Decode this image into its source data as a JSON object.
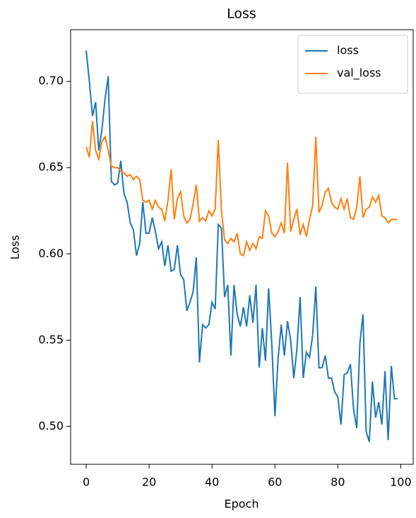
{
  "chart_data": {
    "type": "line",
    "title": "Loss",
    "xlabel": "Epoch",
    "ylabel": "Loss",
    "x": [
      0,
      1,
      2,
      3,
      4,
      5,
      6,
      7,
      8,
      9,
      10,
      11,
      12,
      13,
      14,
      15,
      16,
      17,
      18,
      19,
      20,
      21,
      22,
      23,
      24,
      25,
      26,
      27,
      28,
      29,
      30,
      31,
      32,
      33,
      34,
      35,
      36,
      37,
      38,
      39,
      40,
      41,
      42,
      43,
      44,
      45,
      46,
      47,
      48,
      49,
      50,
      51,
      52,
      53,
      54,
      55,
      56,
      57,
      58,
      59,
      60,
      61,
      62,
      63,
      64,
      65,
      66,
      67,
      68,
      69,
      70,
      71,
      72,
      73,
      74,
      75,
      76,
      77,
      78,
      79,
      80,
      81,
      82,
      83,
      84,
      85,
      86,
      87,
      88,
      89,
      90,
      91,
      92,
      93,
      94,
      95,
      96,
      97,
      98,
      99
    ],
    "series": [
      {
        "name": "loss",
        "color": "#1f77b4",
        "values": [
          0.718,
          0.7,
          0.68,
          0.688,
          0.66,
          0.672,
          0.69,
          0.703,
          0.642,
          0.64,
          0.641,
          0.654,
          0.635,
          0.63,
          0.618,
          0.614,
          0.599,
          0.606,
          0.63,
          0.612,
          0.612,
          0.621,
          0.613,
          0.603,
          0.607,
          0.593,
          0.605,
          0.59,
          0.591,
          0.605,
          0.588,
          0.585,
          0.567,
          0.572,
          0.578,
          0.598,
          0.537,
          0.559,
          0.557,
          0.559,
          0.572,
          0.568,
          0.617,
          0.615,
          0.575,
          0.582,
          0.541,
          0.582,
          0.565,
          0.558,
          0.569,
          0.558,
          0.576,
          0.56,
          0.582,
          0.534,
          0.557,
          0.538,
          0.58,
          0.548,
          0.506,
          0.539,
          0.559,
          0.541,
          0.561,
          0.55,
          0.528,
          0.545,
          0.575,
          0.528,
          0.543,
          0.54,
          0.553,
          0.581,
          0.534,
          0.534,
          0.541,
          0.528,
          0.528,
          0.52,
          0.517,
          0.501,
          0.53,
          0.531,
          0.536,
          0.51,
          0.499,
          0.548,
          0.565,
          0.497,
          0.491,
          0.526,
          0.505,
          0.514,
          0.501,
          0.532,
          0.492,
          0.535,
          0.516,
          0.516
        ]
      },
      {
        "name": "val_loss",
        "color": "#ff7f0e",
        "values": [
          0.662,
          0.656,
          0.677,
          0.66,
          0.655,
          0.665,
          0.668,
          0.66,
          0.651,
          0.65,
          0.65,
          0.648,
          0.647,
          0.645,
          0.646,
          0.643,
          0.645,
          0.643,
          0.631,
          0.63,
          0.631,
          0.626,
          0.631,
          0.627,
          0.626,
          0.619,
          0.631,
          0.649,
          0.62,
          0.632,
          0.636,
          0.622,
          0.618,
          0.62,
          0.629,
          0.64,
          0.619,
          0.621,
          0.619,
          0.625,
          0.622,
          0.626,
          0.666,
          0.625,
          0.608,
          0.606,
          0.609,
          0.607,
          0.612,
          0.6,
          0.599,
          0.607,
          0.602,
          0.606,
          0.603,
          0.61,
          0.609,
          0.625,
          0.622,
          0.612,
          0.61,
          0.613,
          0.618,
          0.612,
          0.653,
          0.613,
          0.62,
          0.626,
          0.611,
          0.617,
          0.61,
          0.62,
          0.628,
          0.668,
          0.624,
          0.628,
          0.636,
          0.638,
          0.63,
          0.627,
          0.626,
          0.632,
          0.626,
          0.632,
          0.621,
          0.62,
          0.627,
          0.645,
          0.621,
          0.626,
          0.627,
          0.633,
          0.63,
          0.634,
          0.622,
          0.621,
          0.618,
          0.62,
          0.62,
          0.62
        ]
      }
    ],
    "xlim": [
      -4.95,
      103.95
    ],
    "ylim": [
      0.478,
      0.73
    ],
    "xticks": [
      0,
      20,
      40,
      60,
      80,
      100
    ],
    "yticks": [
      {
        "value": 0.5,
        "label": "0.50"
      },
      0.55,
      {
        "value": 0.6,
        "label": "0.60"
      },
      0.65,
      {
        "value": 0.7,
        "label": "0.70"
      }
    ],
    "legend": "upper right"
  }
}
